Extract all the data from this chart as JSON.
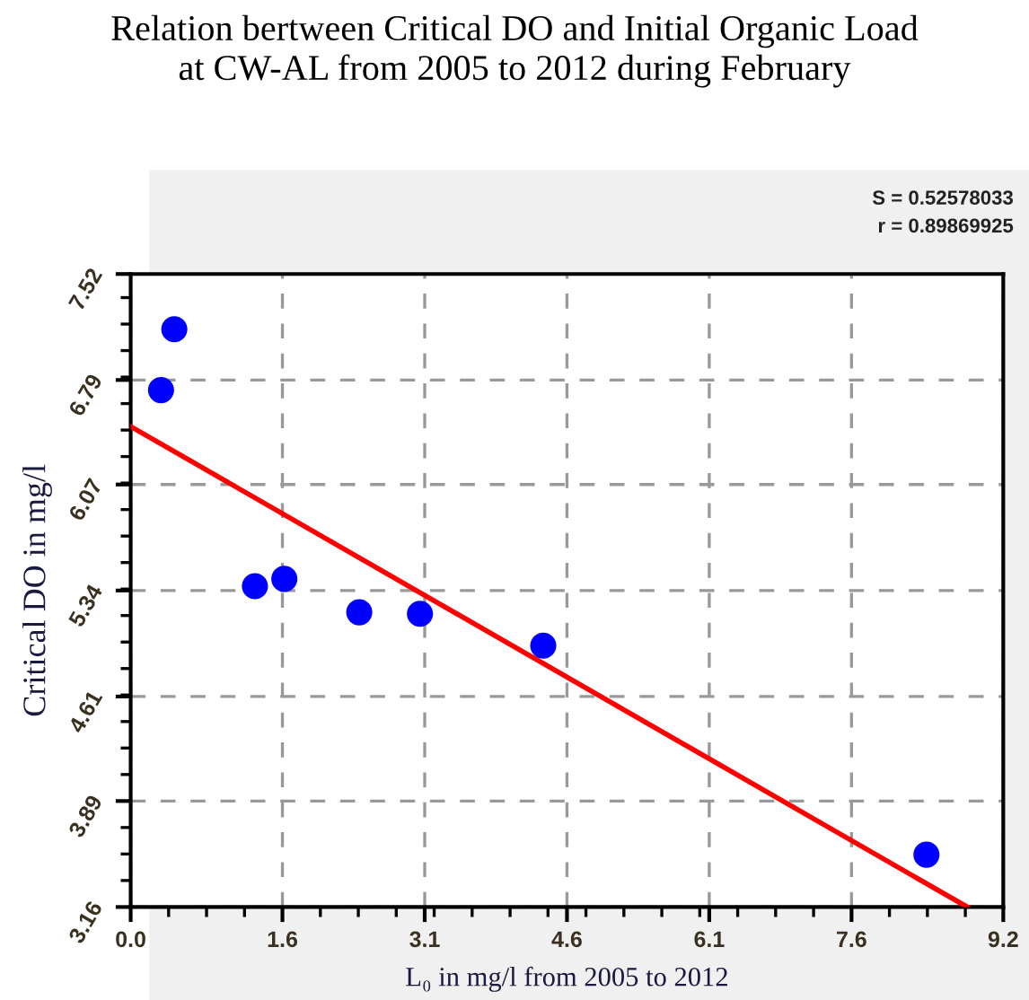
{
  "chart_data": {
    "type": "scatter",
    "title": "Relation bertween Critical DO and Initial Organic Load\nat CW-AL from 2005 to 2012 during February",
    "xlabel": "L₀ in mg/l from 2005 to 2012",
    "ylabel": "Critical DO in mg/l",
    "annotations": [
      "S = 0.52578033",
      "r = 0.89869925"
    ],
    "series": [
      {
        "color": "#0000ff",
        "marker": "circle",
        "x": [
          0.32,
          0.46,
          1.31,
          1.62,
          2.41,
          3.05,
          4.35,
          8.39
        ],
        "values": [
          6.72,
          7.14,
          5.37,
          5.42,
          5.19,
          5.18,
          4.96,
          3.52
        ]
      },
      {
        "type": "line",
        "color": "#ff0000",
        "marker": "none",
        "line_style": "solid",
        "x": [
          0,
          8.82
        ],
        "values": [
          6.47,
          3.16
        ]
      }
    ],
    "xlim": [
      0,
      9.2
    ],
    "ylim": [
      3.16,
      7.52
    ],
    "xticks": [
      {
        "value": 0,
        "label": "0.0"
      },
      1.6,
      3.1,
      4.6,
      6.1,
      7.6,
      9.2
    ],
    "yticks": [
      3.16,
      3.89,
      4.61,
      5.34,
      6.07,
      6.79,
      7.52
    ],
    "grid": true,
    "legend": false
  }
}
